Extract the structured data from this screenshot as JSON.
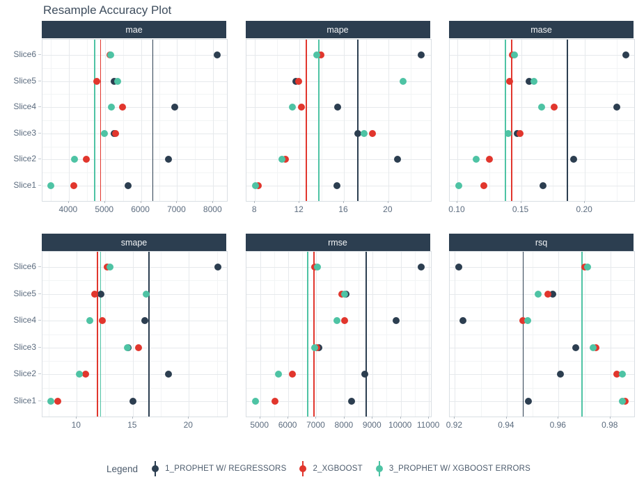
{
  "title": "Resample Accuracy Plot",
  "slices": [
    "Slice1",
    "Slice2",
    "Slice3",
    "Slice4",
    "Slice5",
    "Slice6"
  ],
  "colors": {
    "navy": "#2c3e50",
    "red": "#e1362d",
    "teal": "#4ec3a4",
    "strip_bg": "#2c3e50",
    "strip_text": "#f2f4f6",
    "grid_major": "#e6e9ec",
    "grid_minor": "#f2f4f5",
    "panel_border": "#d9dee3",
    "axis_text": "#5b6b7e",
    "title_text": "#3e4d5d"
  },
  "legend": {
    "label": "Legend",
    "items": [
      {
        "name": "1_PROPHET W/ REGRESSORS",
        "color": "#2c3e50"
      },
      {
        "name": "2_XGBOOST",
        "color": "#e1362d"
      },
      {
        "name": "3_PROPHET W/ XGBOOST ERRORS",
        "color": "#4ec3a4"
      }
    ]
  },
  "chart_data": [
    {
      "type": "scatter",
      "metric": "mae",
      "xlim": [
        3270,
        8380
      ],
      "ticks": [
        4000,
        5000,
        6000,
        7000,
        8000
      ],
      "tick_labels": [
        "4000",
        "5000",
        "6000",
        "7000",
        "8000"
      ],
      "series": [
        {
          "name": "1_PROPHET W/ REGRESSORS",
          "values": [
            5638,
            6760,
            5255,
            6934,
            5251,
            8114
          ],
          "mean": 6325
        },
        {
          "name": "2_XGBOOST",
          "values": [
            4130,
            4478,
            5290,
            5483,
            4768,
            5150
          ],
          "mean": 4883
        },
        {
          "name": "3_PROPHET W/ XGBOOST ERRORS",
          "values": [
            3511,
            4149,
            4981,
            5174,
            5348,
            5155
          ],
          "mean": 4720
        }
      ]
    },
    {
      "type": "scatter",
      "metric": "mape",
      "xlim": [
        7.2,
        23.8
      ],
      "ticks": [
        8,
        12,
        16,
        20
      ],
      "tick_labels": [
        "8",
        "12",
        "16",
        "20"
      ],
      "series": [
        {
          "name": "1_PROPHET W/ REGRESSORS",
          "values": [
            15.35,
            20.84,
            17.23,
            15.45,
            11.66,
            22.97
          ],
          "mean": 17.25
        },
        {
          "name": "2_XGBOOST",
          "values": [
            8.31,
            10.71,
            18.58,
            12.17,
            11.93,
            13.95
          ],
          "mean": 12.61
        },
        {
          "name": "3_PROPHET W/ XGBOOST ERRORS",
          "values": [
            8.04,
            10.4,
            17.81,
            11.34,
            21.3,
            13.53
          ],
          "mean": 13.74
        }
      ]
    },
    {
      "type": "scatter",
      "metric": "mase",
      "xlim": [
        0.094,
        0.2387
      ],
      "ticks": [
        0.1,
        0.15,
        0.2
      ],
      "tick_labels": [
        "0.10",
        "0.15",
        "0.20"
      ],
      "series": [
        {
          "name": "1_PROPHET W/ REGRESSORS",
          "values": [
            0.167,
            0.191,
            0.147,
            0.225,
            0.156,
            0.232
          ],
          "mean": 0.1863
        },
        {
          "name": "2_XGBOOST",
          "values": [
            0.121,
            0.125,
            0.149,
            0.176,
            0.141,
            0.143
          ],
          "mean": 0.1425
        },
        {
          "name": "3_PROPHET W/ XGBOOST ERRORS",
          "values": [
            0.101,
            0.115,
            0.14,
            0.166,
            0.16,
            0.145
          ],
          "mean": 0.1378
        }
      ]
    },
    {
      "type": "scatter",
      "metric": "smape",
      "xlim": [
        6.94,
        23.4
      ],
      "ticks": [
        10,
        15,
        20
      ],
      "tick_labels": [
        "10",
        "15",
        "20"
      ],
      "series": [
        {
          "name": "1_PROPHET W/ REGRESSORS",
          "values": [
            15.04,
            18.17,
            14.6,
            16.08,
            12.14,
            22.6
          ],
          "mean": 16.44
        },
        {
          "name": "2_XGBOOST",
          "values": [
            8.29,
            10.77,
            15.52,
            12.27,
            11.62,
            12.7
          ],
          "mean": 11.86
        },
        {
          "name": "3_PROPHET W/ XGBOOST ERRORS",
          "values": [
            7.71,
            10.23,
            14.52,
            11.16,
            16.21,
            12.96
          ],
          "mean": 12.13
        }
      ]
    },
    {
      "type": "scatter",
      "metric": "rmse",
      "xlim": [
        4500,
        11060
      ],
      "ticks": [
        5000,
        6000,
        7000,
        8000,
        9000,
        10000,
        11000
      ],
      "tick_labels": [
        "5000",
        "6000",
        "7000",
        "8000",
        "9000",
        "10000",
        "11000"
      ],
      "series": [
        {
          "name": "1_PROPHET W/ REGRESSORS",
          "values": [
            8254,
            8711,
            7083,
            9840,
            8046,
            10728
          ],
          "mean": 8777
        },
        {
          "name": "2_XGBOOST",
          "values": [
            5533,
            6136,
            7005,
            8012,
            7904,
            6926
          ],
          "mean": 6919
        },
        {
          "name": "3_PROPHET W/ XGBOOST ERRORS",
          "values": [
            4836,
            5649,
            6941,
            7723,
            8012,
            7025
          ],
          "mean": 6698
        }
      ]
    },
    {
      "type": "scatter",
      "metric": "rsq",
      "xlim": [
        0.918,
        0.9892
      ],
      "ticks": [
        0.92,
        0.94,
        0.96,
        0.98
      ],
      "tick_labels": [
        "0.92",
        "0.94",
        "0.96",
        "0.98"
      ],
      "series": [
        {
          "name": "1_PROPHET W/ REGRESSORS",
          "values": [
            0.9484,
            0.9607,
            0.9667,
            0.923,
            0.9578,
            0.9215
          ],
          "mean": 0.9464
        },
        {
          "name": "2_XGBOOST",
          "values": [
            0.9858,
            0.9825,
            0.9744,
            0.9462,
            0.9558,
            0.9701
          ],
          "mean": 0.9691
        },
        {
          "name": "3_PROPHET W/ XGBOOST ERRORS",
          "values": [
            0.9846,
            0.9845,
            0.9733,
            0.9482,
            0.9521,
            0.9713
          ],
          "mean": 0.969
        }
      ]
    }
  ]
}
